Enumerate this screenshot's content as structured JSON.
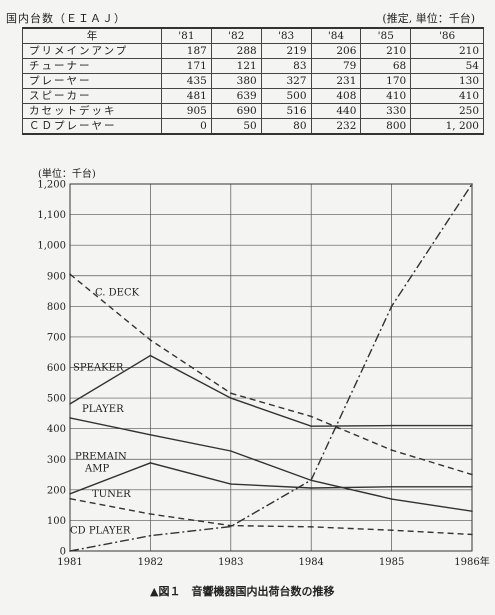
{
  "table": {
    "title": "国内台数（ＥＩＡＪ）",
    "unit_note": "(推定, 単位：千台)",
    "header": [
      "年",
      "'81",
      "'82",
      "'83",
      "'84",
      "'85",
      "'86"
    ],
    "rows": [
      {
        "label": "プリメインアンプ",
        "values": [
          "187",
          "288",
          "219",
          "206",
          "210",
          "210"
        ]
      },
      {
        "label": "チューナー",
        "values": [
          "171",
          "121",
          "83",
          "79",
          "68",
          "54"
        ]
      },
      {
        "label": "プレーヤー",
        "values": [
          "435",
          "380",
          "327",
          "231",
          "170",
          "130"
        ]
      },
      {
        "label": "スピーカー",
        "values": [
          "481",
          "639",
          "500",
          "408",
          "410",
          "410"
        ]
      },
      {
        "label": "カセットデッキ",
        "values": [
          "905",
          "690",
          "516",
          "440",
          "330",
          "250"
        ]
      },
      {
        "label": "ＣＤプレーヤー",
        "values": [
          "0",
          "50",
          "80",
          "232",
          "800",
          "1, 200"
        ]
      }
    ]
  },
  "chart_data": {
    "type": "line",
    "ylabel": "(単位：千台)",
    "x": [
      1981,
      1982,
      1983,
      1984,
      1985,
      1986
    ],
    "x_tick_labels": [
      "1981",
      "1982",
      "1983",
      "1984",
      "1985",
      "1986年"
    ],
    "ylim": [
      0,
      1200
    ],
    "y_ticks": [
      0,
      100,
      200,
      300,
      400,
      500,
      600,
      700,
      800,
      900,
      1000,
      1100,
      1200
    ],
    "y_tick_labels": [
      "0",
      "100",
      "200",
      "300",
      "400",
      "500",
      "600",
      "700",
      "800",
      "900",
      "1,000",
      "1,100",
      "1,200"
    ],
    "grid": true,
    "series": [
      {
        "name": "C. DECK",
        "style": "dashed",
        "values": [
          905,
          690,
          516,
          440,
          330,
          250
        ],
        "label_at": [
          95,
          835
        ]
      },
      {
        "name": "SPEAKER",
        "style": "solid",
        "values": [
          481,
          639,
          500,
          408,
          410,
          410
        ],
        "label_at": [
          73,
          590
        ]
      },
      {
        "name": "PLAYER",
        "style": "solid",
        "values": [
          435,
          380,
          327,
          231,
          170,
          130
        ],
        "label_at": [
          82,
          455
        ]
      },
      {
        "name": "PREMAIN\nAMP",
        "style": "solid",
        "values": [
          187,
          288,
          219,
          206,
          210,
          210
        ],
        "label_at": [
          75,
          300
        ]
      },
      {
        "name": "TUNER",
        "style": "dashed",
        "values": [
          171,
          121,
          83,
          79,
          68,
          54
        ],
        "label_at": [
          92,
          176
        ]
      },
      {
        "name": "CD PLAYER",
        "style": "dashdot",
        "values": [
          0,
          50,
          80,
          232,
          800,
          1200
        ],
        "label_at": [
          70,
          57
        ]
      }
    ]
  },
  "figure_caption": "▲図１　音響機器国内出荷台数の推移"
}
